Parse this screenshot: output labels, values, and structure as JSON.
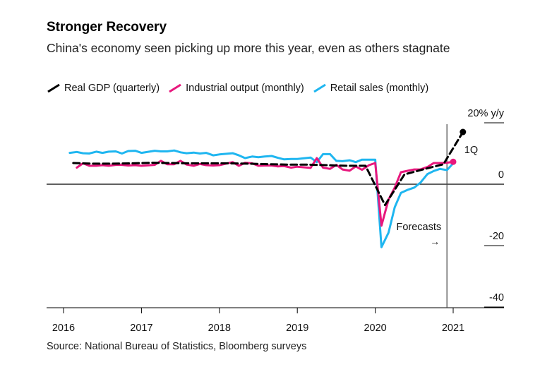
{
  "title": "Stronger Recovery",
  "subtitle": "China's economy seen picking up more this year, even as others stagnate",
  "source": "Source: National Bureau of Statistics, Bloomberg surveys",
  "legend": [
    {
      "label": "Real GDP (quarterly)",
      "color": "#000000",
      "dashed": true
    },
    {
      "label": "Industrial output (monthly)",
      "color": "#e8177d",
      "dashed": false
    },
    {
      "label": "Retail sales (monthly)",
      "color": "#1fb6f0",
      "dashed": false
    }
  ],
  "annotations": {
    "forecasts": "Forecasts",
    "forecast_arrow": "→",
    "q1": "1Q"
  },
  "chart_data": {
    "type": "line",
    "xlim": [
      2016,
      2021.5
    ],
    "ylim": [
      -40,
      20
    ],
    "x_ticks": [
      {
        "value": 2016,
        "label": "2016"
      },
      {
        "value": 2017,
        "label": "2017"
      },
      {
        "value": 2018,
        "label": "2018"
      },
      {
        "value": 2019,
        "label": "2019"
      },
      {
        "value": 2020,
        "label": "2020"
      },
      {
        "value": 2021,
        "label": "2021"
      }
    ],
    "y_ticks": [
      {
        "value": 20,
        "label": "20% y/y"
      },
      {
        "value": 0,
        "label": "0"
      },
      {
        "value": -20,
        "label": "-20"
      },
      {
        "value": -40,
        "label": "-40"
      }
    ],
    "forecast_start": 2020.92,
    "series": [
      {
        "name": "Real GDP (quarterly)",
        "color": "#000000",
        "dashed": true,
        "points": [
          [
            2016.125,
            6.9
          ],
          [
            2016.375,
            6.7
          ],
          [
            2016.625,
            6.7
          ],
          [
            2016.875,
            6.8
          ],
          [
            2017.125,
            7.0
          ],
          [
            2017.375,
            6.9
          ],
          [
            2017.625,
            6.8
          ],
          [
            2017.875,
            6.8
          ],
          [
            2018.125,
            6.8
          ],
          [
            2018.375,
            6.7
          ],
          [
            2018.625,
            6.5
          ],
          [
            2018.875,
            6.4
          ],
          [
            2019.125,
            6.4
          ],
          [
            2019.375,
            6.2
          ],
          [
            2019.625,
            6.0
          ],
          [
            2019.875,
            6.0
          ],
          [
            2020.125,
            -6.8
          ],
          [
            2020.375,
            3.2
          ],
          [
            2020.625,
            4.9
          ],
          [
            2020.875,
            6.5
          ],
          [
            2021.125,
            17.0
          ]
        ]
      },
      {
        "name": "Industrial output (monthly)",
        "color": "#e8177d",
        "dashed": false,
        "points": [
          [
            2016.17,
            5.4
          ],
          [
            2016.25,
            6.8
          ],
          [
            2016.33,
            6.0
          ],
          [
            2016.42,
            6.0
          ],
          [
            2016.5,
            6.2
          ],
          [
            2016.58,
            6.0
          ],
          [
            2016.67,
            6.3
          ],
          [
            2016.75,
            6.3
          ],
          [
            2016.83,
            6.1
          ],
          [
            2016.92,
            6.2
          ],
          [
            2017.0,
            6.0
          ],
          [
            2017.17,
            6.3
          ],
          [
            2017.25,
            7.6
          ],
          [
            2017.33,
            6.5
          ],
          [
            2017.42,
            6.5
          ],
          [
            2017.5,
            7.6
          ],
          [
            2017.58,
            6.4
          ],
          [
            2017.67,
            6.0
          ],
          [
            2017.75,
            6.6
          ],
          [
            2017.83,
            6.2
          ],
          [
            2017.92,
            6.1
          ],
          [
            2018.0,
            6.2
          ],
          [
            2018.17,
            7.2
          ],
          [
            2018.25,
            6.0
          ],
          [
            2018.33,
            7.0
          ],
          [
            2018.42,
            6.8
          ],
          [
            2018.5,
            6.0
          ],
          [
            2018.58,
            6.1
          ],
          [
            2018.67,
            6.1
          ],
          [
            2018.75,
            5.8
          ],
          [
            2018.83,
            5.9
          ],
          [
            2018.92,
            5.4
          ],
          [
            2019.0,
            5.7
          ],
          [
            2019.17,
            5.3
          ],
          [
            2019.25,
            8.5
          ],
          [
            2019.33,
            5.4
          ],
          [
            2019.42,
            5.0
          ],
          [
            2019.5,
            6.3
          ],
          [
            2019.58,
            4.8
          ],
          [
            2019.67,
            4.4
          ],
          [
            2019.75,
            5.8
          ],
          [
            2019.83,
            4.7
          ],
          [
            2019.92,
            6.2
          ],
          [
            2020.0,
            6.9
          ],
          [
            2020.08,
            -13.5
          ],
          [
            2020.17,
            -5.0
          ],
          [
            2020.25,
            -1.1
          ],
          [
            2020.33,
            3.9
          ],
          [
            2020.42,
            4.4
          ],
          [
            2020.5,
            4.8
          ],
          [
            2020.58,
            4.8
          ],
          [
            2020.67,
            5.6
          ],
          [
            2020.75,
            6.9
          ],
          [
            2020.83,
            6.9
          ],
          [
            2020.92,
            7.0
          ],
          [
            2021.0,
            7.3
          ]
        ]
      },
      {
        "name": "Retail sales (monthly)",
        "color": "#1fb6f0",
        "dashed": false,
        "points": [
          [
            2016.08,
            10.2
          ],
          [
            2016.17,
            10.5
          ],
          [
            2016.25,
            10.1
          ],
          [
            2016.33,
            10.0
          ],
          [
            2016.42,
            10.6
          ],
          [
            2016.5,
            10.2
          ],
          [
            2016.58,
            10.6
          ],
          [
            2016.67,
            10.7
          ],
          [
            2016.75,
            10.0
          ],
          [
            2016.83,
            10.8
          ],
          [
            2016.92,
            10.9
          ],
          [
            2017.0,
            10.2
          ],
          [
            2017.17,
            10.9
          ],
          [
            2017.25,
            10.7
          ],
          [
            2017.33,
            10.7
          ],
          [
            2017.42,
            11.0
          ],
          [
            2017.5,
            10.4
          ],
          [
            2017.58,
            10.1
          ],
          [
            2017.67,
            10.3
          ],
          [
            2017.75,
            10.0
          ],
          [
            2017.83,
            10.2
          ],
          [
            2017.92,
            9.4
          ],
          [
            2018.0,
            9.7
          ],
          [
            2018.17,
            10.1
          ],
          [
            2018.25,
            9.4
          ],
          [
            2018.33,
            8.5
          ],
          [
            2018.42,
            9.0
          ],
          [
            2018.5,
            8.8
          ],
          [
            2018.58,
            9.0
          ],
          [
            2018.67,
            9.2
          ],
          [
            2018.75,
            8.6
          ],
          [
            2018.83,
            8.1
          ],
          [
            2018.92,
            8.2
          ],
          [
            2019.0,
            8.2
          ],
          [
            2019.17,
            8.7
          ],
          [
            2019.25,
            7.2
          ],
          [
            2019.33,
            9.8
          ],
          [
            2019.42,
            9.8
          ],
          [
            2019.5,
            7.6
          ],
          [
            2019.58,
            7.5
          ],
          [
            2019.67,
            7.8
          ],
          [
            2019.75,
            7.2
          ],
          [
            2019.83,
            8.0
          ],
          [
            2019.92,
            8.0
          ],
          [
            2020.0,
            8.0
          ],
          [
            2020.08,
            -20.5
          ],
          [
            2020.17,
            -15.8
          ],
          [
            2020.25,
            -7.5
          ],
          [
            2020.33,
            -2.8
          ],
          [
            2020.42,
            -1.8
          ],
          [
            2020.5,
            -1.1
          ],
          [
            2020.58,
            0.5
          ],
          [
            2020.67,
            3.3
          ],
          [
            2020.75,
            4.3
          ],
          [
            2020.83,
            5.0
          ],
          [
            2020.92,
            4.6
          ],
          [
            2021.0,
            6.8
          ]
        ]
      }
    ]
  }
}
